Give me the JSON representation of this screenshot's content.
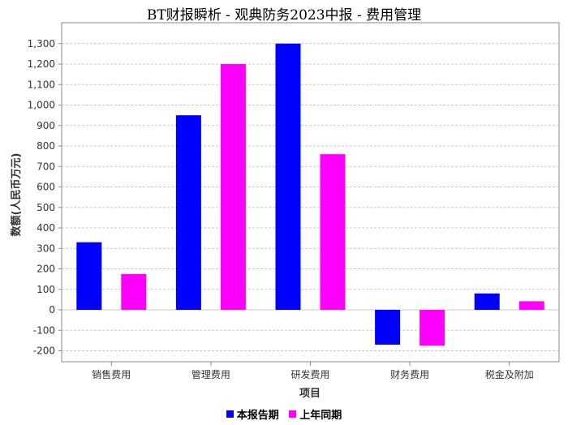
{
  "chart_data": {
    "type": "bar",
    "title": "BT财报瞬析 - 观典防务2023中报 - 费用管理",
    "xlabel": "项目",
    "ylabel": "数额(人民币万元)",
    "categories": [
      "销售费用",
      "管理费用",
      "研发费用",
      "财务费用",
      "税金及附加"
    ],
    "series": [
      {
        "name": "本报告期",
        "color": "#0000ff",
        "values": [
          330,
          950,
          1300,
          -170,
          80
        ]
      },
      {
        "name": "上年同期",
        "color": "#ff00ff",
        "values": [
          175,
          1200,
          760,
          -175,
          42
        ]
      }
    ],
    "ylim": [
      -250,
      1400
    ],
    "yticks": [
      -200,
      -100,
      0,
      100,
      200,
      300,
      400,
      500,
      600,
      700,
      800,
      900,
      1000,
      1100,
      1200,
      1300
    ],
    "ytick_labels": [
      "-200",
      "-100",
      "0",
      "100",
      "200",
      "300",
      "400",
      "500",
      "600",
      "700",
      "800",
      "900",
      "1,000",
      "1,100",
      "1,200",
      "1,300"
    ],
    "grid": true,
    "legend_position": "bottom"
  }
}
